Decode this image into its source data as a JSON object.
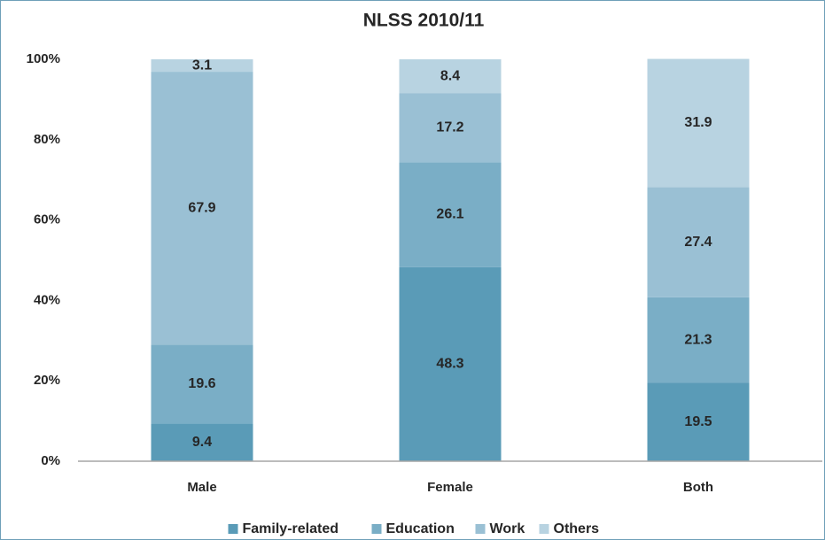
{
  "chart_data": {
    "type": "stacked_bar",
    "title": "NLSS 2010/11",
    "categories": [
      "Male",
      "Female",
      "Both"
    ],
    "series": [
      {
        "name": "Family-related",
        "color": "#5a9bb7",
        "values": [
          9.4,
          48.3,
          19.5
        ]
      },
      {
        "name": "Education",
        "color": "#7aaec6",
        "values": [
          19.6,
          26.1,
          21.3
        ]
      },
      {
        "name": "Work",
        "color": "#9ac0d4",
        "values": [
          67.9,
          17.2,
          27.4
        ]
      },
      {
        "name": "Others",
        "color": "#b8d3e1",
        "values": [
          3.1,
          8.4,
          31.9
        ]
      }
    ],
    "ylim": [
      0,
      100
    ],
    "yticks": [
      {
        "value": 0,
        "label": "0%"
      },
      {
        "value": 20,
        "label": "20%"
      },
      {
        "value": 40,
        "label": "40%"
      },
      {
        "value": 60,
        "label": "60%"
      },
      {
        "value": 80,
        "label": "80%"
      },
      {
        "value": 100,
        "label": "100%"
      }
    ],
    "grid": false,
    "legend": "bottom"
  }
}
